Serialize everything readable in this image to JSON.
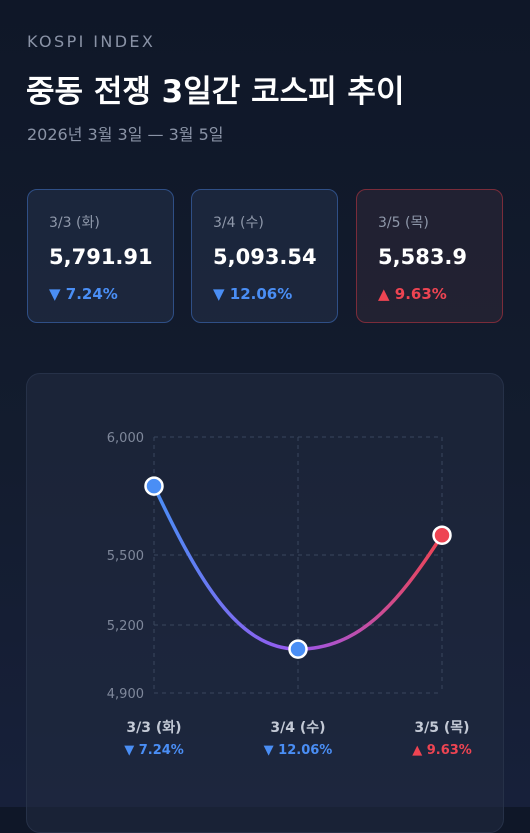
{
  "header": {
    "eyebrow": "KOSPI INDEX",
    "title": "중동 전쟁 3일간 코스피 추이",
    "subtitle": "2026년 3월 3일 — 3월 5일"
  },
  "cards": [
    {
      "date": "3/3 (화)",
      "value": "5,791.91",
      "change": "▼ 7.24%",
      "direction": "down"
    },
    {
      "date": "3/4 (수)",
      "value": "5,093.54",
      "change": "▼ 12.06%",
      "direction": "down"
    },
    {
      "date": "3/5 (목)",
      "value": "5,583.9",
      "change": "▲ 9.63%",
      "direction": "up"
    }
  ],
  "colors": {
    "down": "#4a8ef5",
    "up": "#ee4452",
    "grid": "#3a465e",
    "tick_text": "#7f889b",
    "category_text": "#c3c9d5",
    "line_start": "#4a8ef5",
    "line_mid": "#9b57ee",
    "line_end": "#ee4452"
  },
  "chart_data": {
    "type": "line",
    "categories": [
      "3/3 (화)",
      "3/4 (수)",
      "3/5 (목)"
    ],
    "values": [
      5791.91,
      5093.54,
      5583.9
    ],
    "changes": [
      "▼ 7.24%",
      "▼ 12.06%",
      "▲ 9.63%"
    ],
    "directions": [
      "down",
      "down",
      "up"
    ],
    "yticks": [
      4900,
      5200,
      5500,
      6000
    ],
    "ytick_labels": [
      "4,900",
      "5,200",
      "5,500",
      "6,000"
    ],
    "ylim": [
      4900,
      6000
    ],
    "grid": true,
    "title": "",
    "xlabel": "",
    "ylabel": ""
  }
}
